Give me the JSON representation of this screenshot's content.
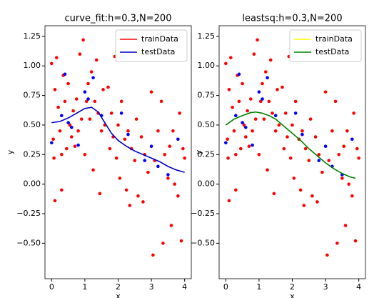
{
  "chart_data": [
    {
      "type": "scatter",
      "title": "curve_fit:h=0.3,N=200",
      "x_label": "x",
      "y_label": "y",
      "xlim": [
        -0.2,
        4.2
      ],
      "ylim": [
        -0.8,
        1.34
      ],
      "xticks": [
        0,
        1,
        2,
        3,
        4
      ],
      "yticks": [
        {
          "value": -0.5,
          "label": "−0.50"
        },
        {
          "value": -0.25,
          "label": "−0.25"
        },
        {
          "value": 0,
          "label": "0.00"
        },
        {
          "value": 0.25,
          "label": "0.25"
        },
        {
          "value": 0.5,
          "label": "0.50"
        },
        {
          "value": 0.75,
          "label": "0.75"
        },
        {
          "value": 1,
          "label": "1.00"
        },
        {
          "value": 1.25,
          "label": "1.25"
        }
      ],
      "legend": "upper right",
      "series": [
        {
          "name": "trainData",
          "color": "#ff0000",
          "marker_color": "#ff0000",
          "x": [
            0.0,
            0.05,
            0.07,
            0.1,
            0.1,
            0.15,
            0.2,
            0.25,
            0.3,
            0.3,
            0.35,
            0.4,
            0.45,
            0.5,
            0.55,
            0.6,
            0.65,
            0.7,
            0.75,
            0.8,
            0.85,
            0.9,
            0.95,
            1.0,
            1.05,
            1.1,
            1.15,
            1.2,
            1.25,
            1.3,
            1.35,
            1.4,
            1.45,
            1.5,
            1.55,
            1.6,
            1.7,
            1.75,
            1.8,
            1.85,
            1.9,
            1.95,
            2.0,
            2.05,
            2.1,
            2.2,
            2.25,
            2.3,
            2.35,
            2.4,
            2.5,
            2.55,
            2.6,
            2.7,
            2.75,
            2.8,
            2.9,
            3.0,
            3.05,
            3.1,
            3.2,
            3.3,
            3.35,
            3.4,
            3.5,
            3.55,
            3.6,
            3.65,
            3.7,
            3.8,
            3.85,
            3.9,
            3.95,
            4.0
          ],
          "values": [
            1.02,
            0.38,
            0.22,
            -0.14,
            0.8,
            1.07,
            0.65,
            0.45,
            -0.05,
            0.25,
            0.92,
            0.7,
            0.3,
            0.85,
            0.5,
            0.4,
            0.62,
            0.32,
            0.72,
            0.45,
            1.1,
            0.55,
            1.22,
            0.25,
            0.7,
            0.85,
            0.55,
            0.95,
            0.12,
            0.7,
            1.05,
            0.6,
            -0.08,
            0.45,
            0.8,
            0.5,
            0.82,
            0.3,
            0.6,
            0.4,
            1.08,
            0.22,
            0.5,
            0.05,
            0.7,
            0.38,
            -0.05,
            0.45,
            -0.18,
            0.3,
            0.2,
            0.55,
            -0.1,
            0.4,
            -0.15,
            0.25,
            0.1,
            0.78,
            -0.6,
            0.2,
            0.45,
            0.7,
            -0.5,
            0.25,
            0.05,
            0.32,
            -0.35,
            0.45,
            0.0,
            -0.1,
            0.6,
            -0.48,
            0.3,
            0.22
          ]
        },
        {
          "name": "testData",
          "color": "#0000cc",
          "marker_color": "#0000ff",
          "x": [
            0.0,
            0.3,
            0.4,
            0.5,
            0.6,
            0.8,
            1.0,
            1.1,
            1.25,
            1.5,
            2.1,
            2.3,
            2.8,
            3.0,
            3.2,
            3.5,
            3.8
          ],
          "values": [
            0.35,
            0.58,
            0.93,
            0.52,
            0.48,
            0.33,
            0.78,
            0.72,
            0.9,
            0.58,
            0.6,
            0.42,
            0.2,
            0.32,
            0.15,
            0.08,
            0.38
          ],
          "line_x": [
            0,
            0.25,
            0.5,
            0.75,
            1.0,
            1.2,
            1.4,
            1.6,
            1.8,
            2.0,
            2.25,
            2.5,
            2.75,
            3.0,
            3.25,
            3.5,
            3.75,
            4.0
          ],
          "line_values": [
            0.52,
            0.53,
            0.56,
            0.6,
            0.64,
            0.65,
            0.61,
            0.52,
            0.43,
            0.37,
            0.32,
            0.28,
            0.25,
            0.22,
            0.19,
            0.15,
            0.12,
            0.1
          ]
        }
      ]
    },
    {
      "type": "scatter",
      "title": "leastsq:h=0.3,N=200",
      "x_label": "x",
      "y_label": "y",
      "xlim": [
        -0.2,
        4.2
      ],
      "ylim": [
        -0.8,
        1.34
      ],
      "xticks": [
        0,
        1,
        2,
        3,
        4
      ],
      "yticks": [
        {
          "value": -0.5,
          "label": "−0.50"
        },
        {
          "value": -0.25,
          "label": "−0.25"
        },
        {
          "value": 0,
          "label": "0.00"
        },
        {
          "value": 0.25,
          "label": "0.25"
        },
        {
          "value": 0.5,
          "label": "0.50"
        },
        {
          "value": 0.75,
          "label": "0.75"
        },
        {
          "value": 1,
          "label": "1.00"
        },
        {
          "value": 1.25,
          "label": "1.25"
        }
      ],
      "legend": "upper right",
      "series": [
        {
          "name": "trainData",
          "color": "#ffff00",
          "marker_color": "#ff0000",
          "x": [
            0.0,
            0.05,
            0.07,
            0.1,
            0.1,
            0.15,
            0.2,
            0.25,
            0.3,
            0.3,
            0.35,
            0.4,
            0.45,
            0.5,
            0.55,
            0.6,
            0.65,
            0.7,
            0.75,
            0.8,
            0.85,
            0.9,
            0.95,
            1.0,
            1.05,
            1.1,
            1.15,
            1.2,
            1.25,
            1.3,
            1.35,
            1.4,
            1.45,
            1.5,
            1.55,
            1.6,
            1.7,
            1.75,
            1.8,
            1.85,
            1.9,
            1.95,
            2.0,
            2.05,
            2.1,
            2.2,
            2.25,
            2.3,
            2.35,
            2.4,
            2.5,
            2.55,
            2.6,
            2.7,
            2.75,
            2.8,
            2.9,
            3.0,
            3.05,
            3.1,
            3.2,
            3.3,
            3.35,
            3.4,
            3.5,
            3.55,
            3.6,
            3.65,
            3.7,
            3.8,
            3.85,
            3.9,
            3.95,
            4.0
          ],
          "values": [
            1.02,
            0.38,
            0.22,
            -0.14,
            0.8,
            1.07,
            0.65,
            0.45,
            -0.05,
            0.25,
            0.92,
            0.7,
            0.3,
            0.85,
            0.5,
            0.4,
            0.62,
            0.32,
            0.72,
            0.45,
            1.1,
            0.55,
            1.22,
            0.25,
            0.7,
            0.85,
            0.55,
            0.95,
            0.12,
            0.7,
            1.05,
            0.6,
            -0.08,
            0.45,
            0.8,
            0.5,
            0.82,
            0.3,
            0.6,
            0.4,
            1.08,
            0.22,
            0.5,
            0.05,
            0.7,
            0.38,
            -0.05,
            0.45,
            -0.18,
            0.3,
            0.2,
            0.55,
            -0.1,
            0.4,
            -0.15,
            0.25,
            0.1,
            0.78,
            -0.6,
            0.2,
            0.45,
            0.7,
            -0.5,
            0.25,
            0.05,
            0.32,
            -0.35,
            0.45,
            0.0,
            -0.1,
            0.6,
            -0.48,
            0.3,
            0.22
          ]
        },
        {
          "name": "testData",
          "color": "#008000",
          "marker_color": "#0000ff",
          "x": [
            0.0,
            0.3,
            0.4,
            0.5,
            0.6,
            0.8,
            1.0,
            1.1,
            1.25,
            1.5,
            2.1,
            2.3,
            2.8,
            3.0,
            3.2,
            3.5,
            3.8
          ],
          "values": [
            0.35,
            0.58,
            0.93,
            0.52,
            0.48,
            0.33,
            0.78,
            0.72,
            0.9,
            0.58,
            0.6,
            0.42,
            0.2,
            0.32,
            0.15,
            0.08,
            0.38
          ],
          "line_x": [
            0,
            0.25,
            0.5,
            0.75,
            0.9,
            1.1,
            1.3,
            1.5,
            1.75,
            2.0,
            2.25,
            2.5,
            2.75,
            3.0,
            3.25,
            3.5,
            3.75,
            3.9
          ],
          "line_values": [
            0.5,
            0.55,
            0.58,
            0.605,
            0.61,
            0.6,
            0.58,
            0.55,
            0.49,
            0.43,
            0.37,
            0.3,
            0.24,
            0.18,
            0.13,
            0.09,
            0.06,
            0.05
          ]
        }
      ]
    }
  ]
}
